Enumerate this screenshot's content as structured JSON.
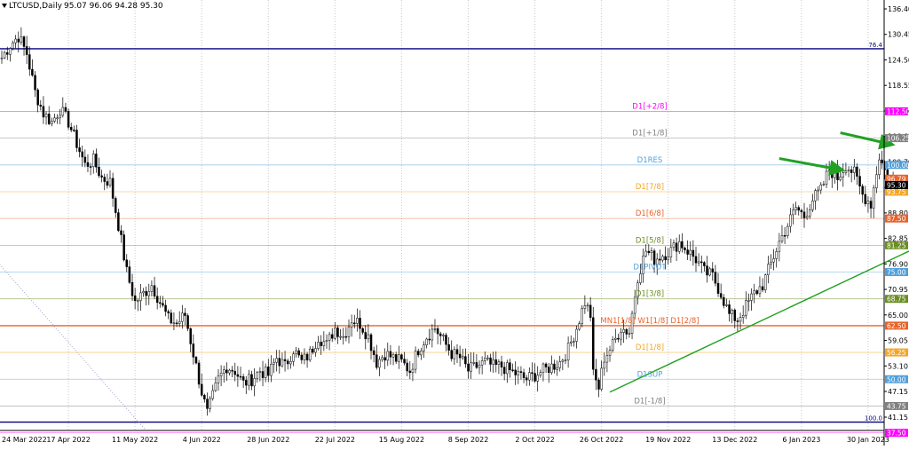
{
  "header": {
    "symbol": "LTCUSD,Daily",
    "ohlc": "95.07 96.06 94.28 95.30",
    "arrow_icon": "triangle-down-icon"
  },
  "chart_data": {
    "type": "candlestick",
    "title": "",
    "xlabel": "",
    "ylabel": "",
    "ylim": [
      37.5,
      138.5
    ],
    "grid": true,
    "y_ticks": [
      "136.40",
      "130.45",
      "124.50",
      "118.55",
      "112.60",
      "106.65",
      "100.70",
      "94.75",
      "88.80",
      "82.85",
      "76.90",
      "70.95",
      "65.00",
      "59.05",
      "53.10",
      "47.15",
      "41.15"
    ],
    "x_ticks": [
      {
        "label": "24 Mar 2022",
        "day": 0
      },
      {
        "label": "17 Apr 2022",
        "day": 24
      },
      {
        "label": "11 May 2022",
        "day": 48
      },
      {
        "label": "4 Jun 2022",
        "day": 72
      },
      {
        "label": "28 Jun 2022",
        "day": 96
      },
      {
        "label": "22 Jul 2022",
        "day": 120
      },
      {
        "label": "15 Aug 2022",
        "day": 144
      },
      {
        "label": "8 Sep 2022",
        "day": 168
      },
      {
        "label": "2 Oct 2022",
        "day": 192
      },
      {
        "label": "26 Oct 2022",
        "day": 216
      },
      {
        "label": "19 Nov 2022",
        "day": 240
      },
      {
        "label": "13 Dec 2022",
        "day": 264
      },
      {
        "label": "6 Jan 2023",
        "day": 288
      },
      {
        "label": "30 Jan 2023",
        "day": 312
      }
    ],
    "levels": [
      {
        "name": "76.4 line",
        "value": 127.1,
        "color": "#000080",
        "label": "76.4",
        "label_pos": "right",
        "badge": false
      },
      {
        "name": "D1[+2/8]",
        "value": 112.5,
        "color": "#ff00ff",
        "label": "D1[+2/8]",
        "badge": "112.50"
      },
      {
        "name": "D1[+1/8]",
        "value": 106.25,
        "color": "#808080",
        "label": "D1[+1/8]",
        "badge": "106.25"
      },
      {
        "name": "D1RES",
        "value": 100.0,
        "color": "#4f9fdc",
        "label": "D1RES",
        "badge": "100.00"
      },
      {
        "name": "D1[7/8]",
        "value": 93.75,
        "color": "#f5a623",
        "label": "D1[7/8]",
        "badge": "93.75"
      },
      {
        "name": "D1[6/8]",
        "value": 87.5,
        "color": "#e8632a",
        "label": "D1[6/8]",
        "badge": "87.50"
      },
      {
        "name": "D1[5/8]",
        "value": 81.25,
        "color": "#6b8e23",
        "label": "D1[5/8]",
        "badge": "81.25"
      },
      {
        "name": "D1PIVOT",
        "value": 75.0,
        "color": "#4f9fdc",
        "label": "D1PIVOT",
        "badge": "75.00"
      },
      {
        "name": "D1[3/8]",
        "value": 68.75,
        "color": "#6b8e23",
        "label": "D1[3/8]",
        "badge": "68.75"
      },
      {
        "name": "MN1[1/8] W1[1/8] D1[2/8]",
        "value": 62.5,
        "color": "#e8632a",
        "label": "MN1[1/8] W1[1/8] D1[2/8]",
        "badge": "62.50"
      },
      {
        "name": "D1[1/8]",
        "value": 56.25,
        "color": "#f5a623",
        "label": "D1[1/8]",
        "badge": "56.25"
      },
      {
        "name": "D1SUP",
        "value": 50.0,
        "color": "#4f9fdc",
        "label": "D1SUP",
        "badge": "50.00"
      },
      {
        "name": "D1[-1/8]",
        "value": 43.75,
        "color": "#808080",
        "label": "D1[-1/8]",
        "badge": "43.75"
      },
      {
        "name": "100.0 line",
        "value": 40.0,
        "color": "#000080",
        "label": "100.0",
        "label_pos": "right",
        "badge": false
      },
      {
        "name": "D1[-2/8]",
        "value": 37.5,
        "color": "#ff00ff",
        "label": "",
        "badge": "37.50"
      }
    ],
    "price_badges": [
      {
        "name": "ask",
        "value": 96.79,
        "text": "96.79",
        "color": "#e8632a"
      },
      {
        "name": "current",
        "value": 95.3,
        "text": "95.30",
        "color": "#000000"
      }
    ],
    "trendlines": [
      {
        "name": "support-trendline",
        "from": {
          "day": 219,
          "price": 47.0
        },
        "to": {
          "day": 409,
          "price": 105.0
        },
        "color": "#22a022",
        "dash": false
      },
      {
        "name": "dotted-diagonal",
        "from": {
          "day": -16,
          "price": 88.0
        },
        "to": {
          "day": 52,
          "price": 38.0
        },
        "color": "#a0a0c8",
        "dash": true
      }
    ],
    "arrows": [
      {
        "name": "green-arrow-1",
        "from": {
          "day": 280,
          "price": 101.5
        },
        "to": {
          "day": 301,
          "price": 99.0
        },
        "color": "#22a022"
      },
      {
        "name": "green-arrow-2",
        "from": {
          "day": 302,
          "price": 107.5
        },
        "to": {
          "day": 319,
          "price": 105.0
        },
        "color": "#22a022"
      }
    ],
    "series": [
      {
        "type": "close-anchors",
        "anchors": [
          [
            0,
            125
          ],
          [
            3,
            128
          ],
          [
            6,
            130
          ],
          [
            9,
            126
          ],
          [
            12,
            117
          ],
          [
            15,
            112
          ],
          [
            18,
            110
          ],
          [
            21,
            113
          ],
          [
            24,
            110
          ],
          [
            27,
            105
          ],
          [
            30,
            100
          ],
          [
            33,
            101
          ],
          [
            36,
            97
          ],
          [
            39,
            96
          ],
          [
            42,
            86
          ],
          [
            45,
            75
          ],
          [
            48,
            68
          ],
          [
            51,
            70
          ],
          [
            54,
            72
          ],
          [
            57,
            68
          ],
          [
            60,
            64
          ],
          [
            63,
            63
          ],
          [
            66,
            65
          ],
          [
            69,
            56
          ],
          [
            72,
            47
          ],
          [
            74,
            42
          ],
          [
            76,
            46
          ],
          [
            78,
            50
          ],
          [
            81,
            53
          ],
          [
            84,
            52
          ],
          [
            87,
            49
          ],
          [
            90,
            50
          ],
          [
            93,
            52
          ],
          [
            96,
            51
          ],
          [
            99,
            55
          ],
          [
            102,
            53
          ],
          [
            105,
            57
          ],
          [
            108,
            54
          ],
          [
            111,
            56
          ],
          [
            114,
            60
          ],
          [
            117,
            58
          ],
          [
            120,
            62
          ],
          [
            123,
            60
          ],
          [
            126,
            64
          ],
          [
            129,
            63
          ],
          [
            132,
            60
          ],
          [
            135,
            54
          ],
          [
            138,
            56
          ],
          [
            141,
            55
          ],
          [
            144,
            54
          ],
          [
            147,
            52
          ],
          [
            150,
            57
          ],
          [
            153,
            60
          ],
          [
            156,
            62
          ],
          [
            159,
            59
          ],
          [
            162,
            56
          ],
          [
            165,
            55
          ],
          [
            168,
            52
          ],
          [
            171,
            53
          ],
          [
            174,
            54
          ],
          [
            177,
            53
          ],
          [
            180,
            53
          ],
          [
            183,
            52
          ],
          [
            186,
            51
          ],
          [
            189,
            50
          ],
          [
            192,
            51
          ],
          [
            195,
            52
          ],
          [
            198,
            53
          ],
          [
            201,
            54
          ],
          [
            204,
            57
          ],
          [
            207,
            62
          ],
          [
            210,
            68
          ],
          [
            212,
            65
          ],
          [
            213,
            51
          ],
          [
            215,
            48
          ],
          [
            217,
            55
          ],
          [
            220,
            58
          ],
          [
            223,
            62
          ],
          [
            226,
            61
          ],
          [
            229,
            74
          ],
          [
            232,
            80
          ],
          [
            235,
            78
          ],
          [
            238,
            79
          ],
          [
            241,
            80
          ],
          [
            244,
            82
          ],
          [
            247,
            80
          ],
          [
            250,
            78
          ],
          [
            253,
            75
          ],
          [
            256,
            74
          ],
          [
            259,
            70
          ],
          [
            262,
            65
          ],
          [
            265,
            64
          ],
          [
            268,
            67
          ],
          [
            271,
            70
          ],
          [
            274,
            72
          ],
          [
            277,
            77
          ],
          [
            280,
            82
          ],
          [
            283,
            86
          ],
          [
            286,
            90
          ],
          [
            289,
            88
          ],
          [
            292,
            92
          ],
          [
            295,
            94
          ],
          [
            298,
            99
          ],
          [
            301,
            97
          ],
          [
            304,
            100
          ],
          [
            307,
            98
          ],
          [
            310,
            93
          ],
          [
            313,
            91
          ],
          [
            316,
            102
          ],
          [
            319,
            97
          ],
          [
            321,
            95
          ]
        ]
      }
    ]
  }
}
